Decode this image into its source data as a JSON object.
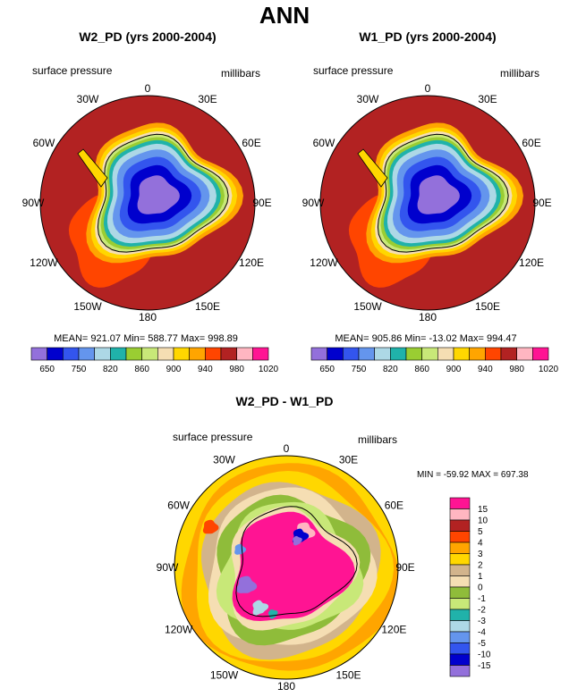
{
  "title": "ANN",
  "chart_data": [
    {
      "type": "heatmap",
      "title": "W2_PD (yrs 2000-2004)",
      "variable": "surface pressure",
      "units": "millibars",
      "projection": "south polar stereographic",
      "lon_labels": [
        "0",
        "30E",
        "60E",
        "90E",
        "120E",
        "150E",
        "180",
        "150W",
        "120W",
        "90W",
        "60W",
        "30W"
      ],
      "stats": {
        "mean": "921.07",
        "min": "588.77",
        "max": "998.89"
      },
      "stats_text": "MEAN= 921.07  Min= 588.77  Max= 998.89",
      "levels": [
        "650",
        "750",
        "820",
        "860",
        "900",
        "940",
        "980",
        "1020"
      ],
      "colors": [
        "#9370db",
        "#0000cd",
        "#3355ee",
        "#6495ed",
        "#add8e6",
        "#20b2aa",
        "#9acd32",
        "#c8e878",
        "#f5deb3",
        "#ffd700",
        "#ffa500",
        "#ff4500",
        "#b22222",
        "#ffb6c1",
        "#ff1493"
      ]
    },
    {
      "type": "heatmap",
      "title": "W1_PD (yrs 2000-2004)",
      "variable": "surface pressure",
      "units": "millibars",
      "projection": "south polar stereographic",
      "lon_labels": [
        "0",
        "30E",
        "60E",
        "90E",
        "120E",
        "150E",
        "180",
        "150W",
        "120W",
        "90W",
        "60W",
        "30W"
      ],
      "stats": {
        "mean": "905.86",
        "min": "-13.02",
        "max": "994.47"
      },
      "stats_text": "MEAN= 905.86  Min= -13.02  Max= 994.47",
      "levels": [
        "650",
        "750",
        "820",
        "860",
        "900",
        "940",
        "980",
        "1020"
      ],
      "colors": [
        "#9370db",
        "#0000cd",
        "#3355ee",
        "#6495ed",
        "#add8e6",
        "#20b2aa",
        "#9acd32",
        "#c8e878",
        "#f5deb3",
        "#ffd700",
        "#ffa500",
        "#ff4500",
        "#b22222",
        "#ffb6c1",
        "#ff1493"
      ]
    },
    {
      "type": "heatmap",
      "title": "W2_PD - W1_PD",
      "variable": "surface pressure",
      "units": "millibars",
      "projection": "south polar stereographic",
      "lon_labels": [
        "0",
        "30E",
        "60E",
        "90E",
        "120E",
        "150E",
        "180",
        "150W",
        "120W",
        "90W",
        "60W",
        "30W"
      ],
      "stats": {
        "min": "-59.92",
        "max": "697.38"
      },
      "stats_text": "MIN = -59.92 MAX = 697.38",
      "levels": [
        "15",
        "10",
        "5",
        "4",
        "3",
        "2",
        "1",
        "0",
        "-1",
        "-2",
        "-3",
        "-4",
        "-5",
        "-10",
        "-15"
      ],
      "colors": [
        "#ff1493",
        "#ffb6c1",
        "#b22222",
        "#ff4500",
        "#ffa500",
        "#ffd700",
        "#d2b48c",
        "#f5deb3",
        "#8fbc3a",
        "#c8e878",
        "#20b2aa",
        "#add8e6",
        "#6495ed",
        "#3355ee",
        "#0000cd",
        "#9370db"
      ]
    }
  ]
}
